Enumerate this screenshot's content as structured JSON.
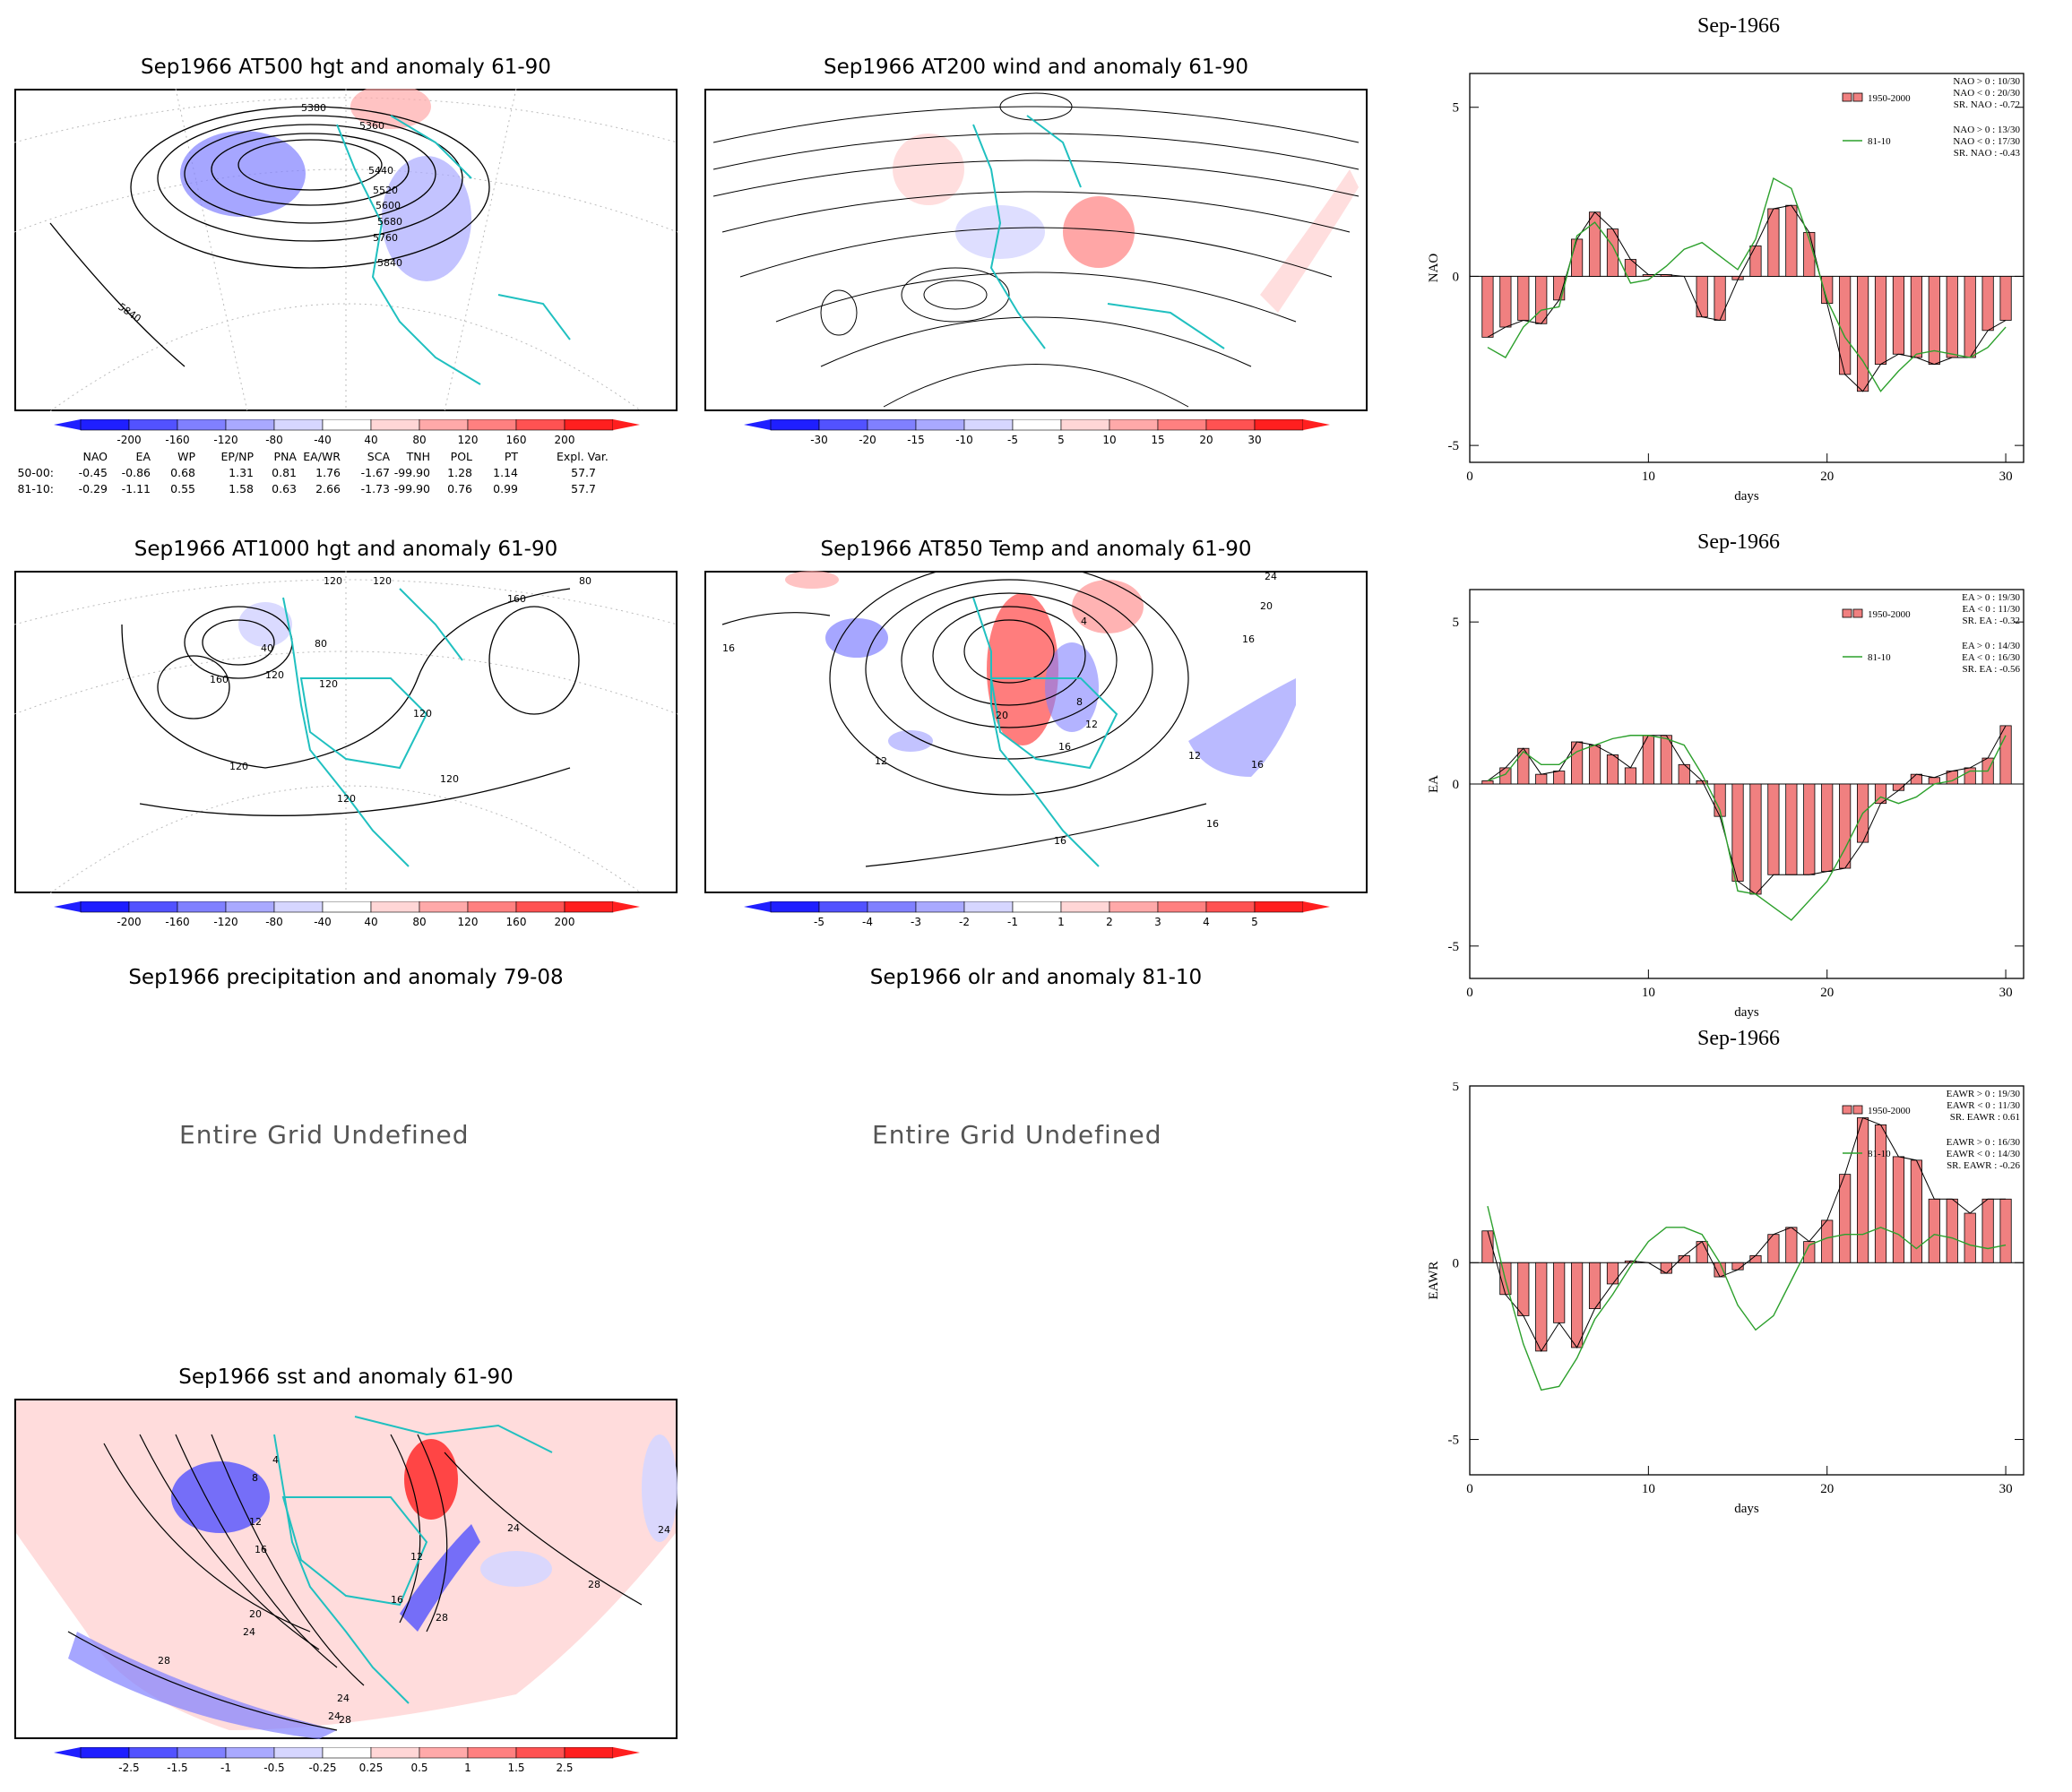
{
  "maps": [
    {
      "id": "at500",
      "title": "Sep1966 AT500 hgt and anomaly 61-90",
      "defined": true
    },
    {
      "id": "at200",
      "title": "Sep1966 AT200 wind and anomaly 61-90",
      "defined": true
    },
    {
      "id": "at1000",
      "title": "Sep1966 AT1000 hgt and anomaly 61-90",
      "defined": true
    },
    {
      "id": "at850",
      "title": "Sep1966 AT850 Temp and anomaly 61-90",
      "defined": true
    },
    {
      "id": "precip",
      "title": "Sep1966 precipitation and anomaly 79-08",
      "defined": false,
      "message": "Entire Grid Undefined"
    },
    {
      "id": "olr",
      "title": "Sep1966 olr and anomaly 81-10",
      "defined": false,
      "message": "Entire Grid Undefined"
    },
    {
      "id": "sst",
      "title": "Sep1966 sst and anomaly 61-90",
      "defined": true
    }
  ],
  "contour_labels": {
    "at500": [
      "5380",
      "5360",
      "5440",
      "5520",
      "5600",
      "5680",
      "5760",
      "5840",
      "5840"
    ],
    "at1000": [
      "120",
      "120",
      "160",
      "80",
      "40",
      "80",
      "120",
      "120",
      "160",
      "120",
      "120",
      "120",
      "120"
    ],
    "at850": [
      "12",
      "16",
      "20",
      "16",
      "8",
      "4",
      "12",
      "16",
      "12",
      "16",
      "20",
      "24",
      "16",
      "16"
    ],
    "sst": [
      "4",
      "8",
      "12",
      "16",
      "20",
      "24",
      "28",
      "28",
      "24",
      "28",
      "24",
      "28",
      "24",
      "16",
      "12",
      "24"
    ]
  },
  "colorbars": {
    "hgt": {
      "labels": [
        "-200",
        "-160",
        "-120",
        "-80",
        "-40",
        "40",
        "80",
        "120",
        "160",
        "200"
      ]
    },
    "wind": {
      "labels": [
        "-30",
        "-20",
        "-15",
        "-10",
        "-5",
        "5",
        "10",
        "15",
        "20",
        "30"
      ]
    },
    "temp": {
      "labels": [
        "-5",
        "-4",
        "-3",
        "-2",
        "-1",
        "1",
        "2",
        "3",
        "4",
        "5"
      ]
    },
    "sst": {
      "labels": [
        "-2.5",
        "-1.5",
        "-1",
        "-0.5",
        "-0.25",
        "0.25",
        "0.5",
        "1",
        "1.5",
        "2.5"
      ]
    },
    "colors": [
      "#1f1fff",
      "#5252ff",
      "#8080ff",
      "#a9a9ff",
      "#d6d6ff",
      "#ffffff",
      "#ffd6d6",
      "#ffa9a9",
      "#ff8080",
      "#ff5252",
      "#ff1f1f"
    ]
  },
  "index_table": {
    "headers": [
      "NAO",
      "EA",
      "WP",
      "EP/NP",
      "PNA",
      "EA/WR",
      "SCA",
      "TNH",
      "POL",
      "PT",
      "Expl. Var."
    ],
    "rows": [
      {
        "label": "50-00:",
        "values": [
          "-0.45",
          "-0.86",
          "0.68",
          "1.31",
          "0.81",
          "1.76",
          "-1.67",
          "-99.90",
          "1.28",
          "1.14",
          "57.7"
        ]
      },
      {
        "label": "81-10:",
        "values": [
          "-0.29",
          "-1.11",
          "0.55",
          "1.58",
          "0.63",
          "2.66",
          "-1.73",
          "-99.90",
          "0.76",
          "0.99",
          "57.7"
        ]
      }
    ]
  },
  "chart_data": [
    {
      "type": "bar",
      "title": "Sep-1966",
      "xlabel": "days",
      "ylabel": "NAO",
      "xlim": [
        0,
        31
      ],
      "ylim": [
        -5.5,
        6
      ],
      "xticks": [
        0,
        10,
        20,
        30
      ],
      "yticks": [
        -5,
        0,
        5
      ],
      "bar_color": "#f08080",
      "line_color": "#2ca02c",
      "x": [
        1,
        2,
        3,
        4,
        5,
        6,
        7,
        8,
        9,
        10,
        11,
        12,
        13,
        14,
        15,
        16,
        17,
        18,
        19,
        20,
        21,
        22,
        23,
        24,
        25,
        26,
        27,
        28,
        29,
        30
      ],
      "series": [
        {
          "name": "1950-2000",
          "values": [
            -1.8,
            -1.5,
            -1.3,
            -1.4,
            -0.7,
            1.1,
            1.9,
            1.4,
            0.5,
            0.05,
            0.05,
            0,
            -1.2,
            -1.3,
            -0.1,
            0.9,
            2.0,
            2.1,
            1.3,
            -0.8,
            -2.9,
            -3.4,
            -2.6,
            -2.3,
            -2.4,
            -2.6,
            -2.4,
            -2.4,
            -1.6,
            -1.3
          ]
        },
        {
          "name": "81-10",
          "values": [
            -2.1,
            -2.4,
            -1.5,
            -1.0,
            -0.9,
            1.2,
            1.6,
            0.9,
            -0.2,
            -0.1,
            0.3,
            0.8,
            1.0,
            0.6,
            0.2,
            1.1,
            2.9,
            2.6,
            1.1,
            -0.7,
            -1.8,
            -2.5,
            -3.4,
            -2.8,
            -2.3,
            -2.2,
            -2.3,
            -2.4,
            -2.1,
            -1.5
          ]
        }
      ],
      "legend": [
        "1950-2000",
        "81-10"
      ],
      "stats_1950": [
        "NAO > 0 : 10/30",
        "NAO < 0 : 20/30",
        "SR. NAO : -0.72"
      ],
      "stats_8110": [
        "NAO > 0 : 13/30",
        "NAO < 0 : 17/30",
        "SR. NAO : -0.43"
      ]
    },
    {
      "type": "bar",
      "title": "Sep-1966",
      "xlabel": "days",
      "ylabel": "EA",
      "xlim": [
        0,
        31
      ],
      "ylim": [
        -6,
        6
      ],
      "xticks": [
        0,
        10,
        20,
        30
      ],
      "yticks": [
        -5,
        0,
        5
      ],
      "bar_color": "#f08080",
      "line_color": "#2ca02c",
      "x": [
        1,
        2,
        3,
        4,
        5,
        6,
        7,
        8,
        9,
        10,
        11,
        12,
        13,
        14,
        15,
        16,
        17,
        18,
        19,
        20,
        21,
        22,
        23,
        24,
        25,
        26,
        27,
        28,
        29,
        30
      ],
      "series": [
        {
          "name": "1950-2000",
          "values": [
            0.1,
            0.5,
            1.1,
            0.3,
            0.4,
            1.3,
            1.2,
            0.9,
            0.5,
            1.5,
            1.5,
            0.6,
            0.1,
            -1.0,
            -3.0,
            -3.4,
            -2.8,
            -2.8,
            -2.8,
            -2.7,
            -2.6,
            -1.8,
            -0.6,
            -0.2,
            0.3,
            0.2,
            0.4,
            0.5,
            0.8,
            1.8
          ]
        },
        {
          "name": "81-10",
          "values": [
            0.1,
            0.3,
            1.0,
            0.6,
            0.6,
            1.0,
            1.2,
            1.4,
            1.5,
            1.5,
            1.4,
            1.2,
            0.3,
            -0.8,
            -3.3,
            -3.4,
            -3.8,
            -4.2,
            -3.6,
            -3.0,
            -2.0,
            -0.9,
            -0.4,
            -0.6,
            -0.4,
            0.0,
            0.1,
            0.4,
            0.4,
            1.5
          ]
        }
      ],
      "legend": [
        "1950-2000",
        "81-10"
      ],
      "stats_1950": [
        "EA > 0 : 19/30",
        "EA < 0 : 11/30",
        "SR. EA : -0.32"
      ],
      "stats_8110": [
        "EA > 0 : 14/30",
        "EA < 0 : 16/30",
        "SR. EA : -0.56"
      ]
    },
    {
      "type": "bar",
      "title": "Sep-1966",
      "xlabel": "days",
      "ylabel": "EAWR",
      "xlim": [
        0,
        31
      ],
      "ylim": [
        -6,
        5
      ],
      "xticks": [
        0,
        10,
        20,
        30
      ],
      "yticks": [
        -5,
        0,
        5
      ],
      "bar_color": "#f08080",
      "line_color": "#2ca02c",
      "x": [
        1,
        2,
        3,
        4,
        5,
        6,
        7,
        8,
        9,
        10,
        11,
        12,
        13,
        14,
        15,
        16,
        17,
        18,
        19,
        20,
        21,
        22,
        23,
        24,
        25,
        26,
        27,
        28,
        29,
        30
      ],
      "series": [
        {
          "name": "1950-2000",
          "values": [
            0.9,
            -0.9,
            -1.5,
            -2.5,
            -1.7,
            -2.4,
            -1.3,
            -0.6,
            0.05,
            0.0,
            -0.3,
            0.2,
            0.6,
            -0.4,
            -0.2,
            0.2,
            0.8,
            1.0,
            0.6,
            1.2,
            2.5,
            4.1,
            3.9,
            3.0,
            2.9,
            1.8,
            1.8,
            1.4,
            1.8,
            1.8
          ]
        },
        {
          "name": "81-10",
          "values": [
            1.6,
            -0.5,
            -2.3,
            -3.6,
            -3.5,
            -2.7,
            -1.6,
            -0.9,
            -0.1,
            0.6,
            1.0,
            1.0,
            0.8,
            0.0,
            -1.2,
            -1.9,
            -1.5,
            -0.5,
            0.5,
            0.7,
            0.8,
            0.8,
            1.0,
            0.8,
            0.4,
            0.8,
            0.7,
            0.5,
            0.4,
            0.5
          ]
        }
      ],
      "legend": [
        "1950-2000",
        "81-10"
      ],
      "stats_1950": [
        "EAWR > 0 : 19/30",
        "EAWR < 0 : 11/30",
        "SR. EAWR : 0.61"
      ],
      "stats_8110": [
        "EAWR > 0 : 16/30",
        "EAWR < 0 : 14/30",
        "SR. EAWR : -0.26"
      ]
    }
  ]
}
